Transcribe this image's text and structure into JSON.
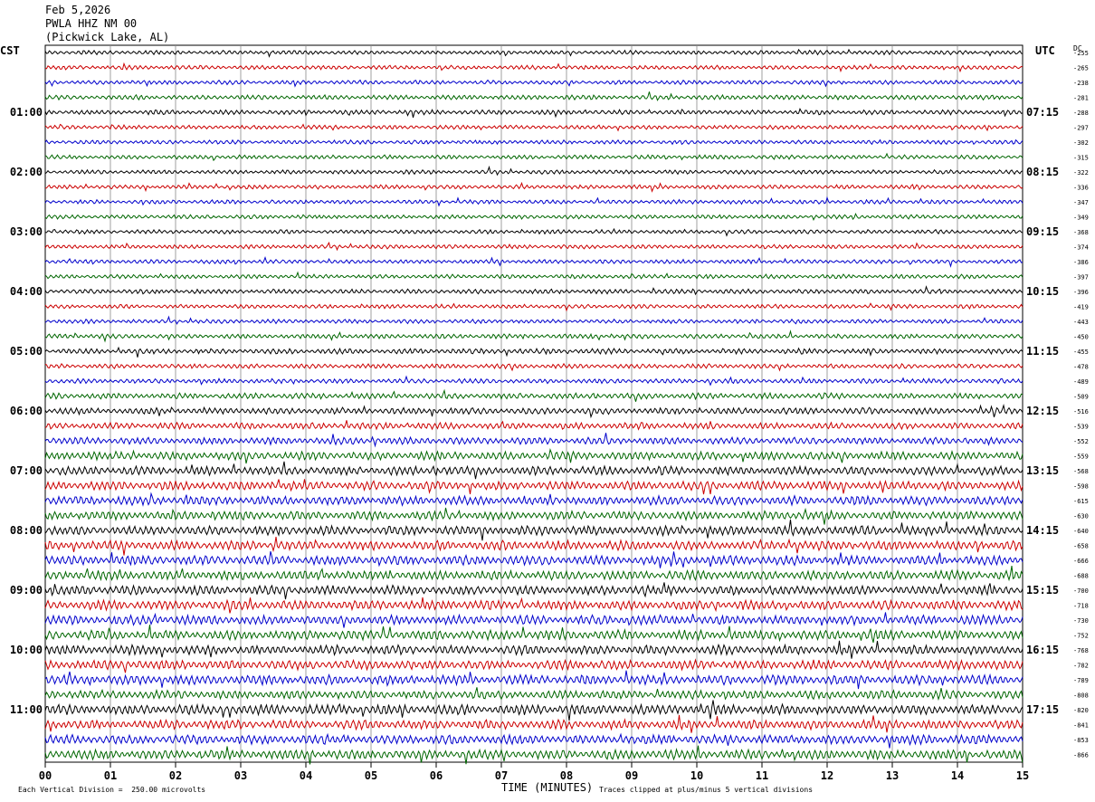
{
  "header": {
    "date": "Feb 5,2026",
    "station": "PWLA HHZ NM 00",
    "location": "(Pickwick Lake, AL)",
    "left_tz": "CST",
    "right_tz": "UTC",
    "dc_label": "DC"
  },
  "footer": {
    "scale_note": "Each Vertical Division =  250.00 microvolts",
    "xlabel": "TIME (MINUTES)",
    "clip_note": "Traces clipped at plus/minus 5 vertical divisions"
  },
  "colors": {
    "trace_cycle": [
      "#000000",
      "#cc0000",
      "#0000cc",
      "#006600"
    ],
    "grid": "#888888"
  },
  "chart_data": {
    "type": "line",
    "description_of_axes": "helicorder",
    "xlabel": "TIME (MINUTES)",
    "x_ticks": [
      "00",
      "01",
      "02",
      "03",
      "04",
      "05",
      "06",
      "07",
      "08",
      "09",
      "10",
      "11",
      "12",
      "13",
      "14",
      "15"
    ],
    "xlim": [
      0,
      15
    ],
    "rows_per_hour": 4,
    "row_count": 48,
    "left_hour_labels": [
      "01:00",
      "02:00",
      "03:00",
      "04:00",
      "05:00",
      "06:00",
      "07:00",
      "08:00",
      "09:00",
      "10:00",
      "11:00"
    ],
    "right_hour_labels": [
      "07:15",
      "08:15",
      "09:15",
      "10:15",
      "11:15",
      "12:15",
      "13:15",
      "14:15",
      "15:15",
      "16:15",
      "17:15"
    ],
    "dc_offsets": [
      "-255",
      "-265",
      "-238",
      "-281",
      "-288",
      "-297",
      "-302",
      "-315",
      "-322",
      "-336",
      "-347",
      "-349",
      "-368",
      "-374",
      "-386",
      "-397",
      "-396",
      "-419",
      "-443",
      "-450",
      "-455",
      "-478",
      "-489",
      "-509",
      "-516",
      "-539",
      "-552",
      "-559",
      "-568",
      "-598",
      "-615",
      "-630",
      "-640",
      "-658",
      "-666",
      "-688",
      "-700",
      "-718",
      "-730",
      "-752",
      "-768",
      "-782",
      "-789",
      "-808",
      "-820",
      "-841",
      "-853",
      "-866"
    ],
    "row_amplitudes": [
      0.35,
      0.35,
      0.35,
      0.4,
      0.4,
      0.35,
      0.35,
      0.35,
      0.35,
      0.35,
      0.35,
      0.35,
      0.35,
      0.35,
      0.35,
      0.35,
      0.4,
      0.35,
      0.35,
      0.4,
      0.45,
      0.4,
      0.4,
      0.5,
      0.55,
      0.55,
      0.6,
      0.7,
      0.75,
      0.75,
      0.75,
      0.75,
      0.8,
      0.8,
      0.8,
      0.8,
      0.8,
      0.8,
      0.8,
      0.8,
      0.8,
      0.8,
      0.8,
      0.75,
      0.85,
      0.8,
      0.8,
      0.8
    ]
  }
}
